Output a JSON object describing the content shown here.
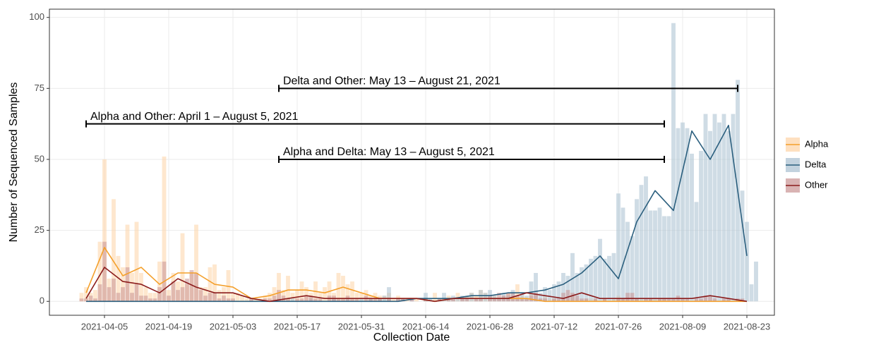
{
  "chart_data": {
    "type": "bar",
    "x_label": "Collection Date",
    "y_label": "Number of Sequenced Samples",
    "xlim": [
      "2021-03-24",
      "2021-08-29"
    ],
    "xticks": [
      "2021-04-05",
      "2021-04-19",
      "2021-05-03",
      "2021-05-17",
      "2021-05-31",
      "2021-06-14",
      "2021-06-28",
      "2021-07-12",
      "2021-07-26",
      "2021-08-09",
      "2021-08-23"
    ],
    "ylim": [
      -4.9,
      102.9
    ],
    "yticks": [
      0,
      25,
      50,
      75,
      100
    ],
    "grid": true,
    "legend": "right",
    "x": [
      "2021-03-31",
      "2021-04-01",
      "2021-04-02",
      "2021-04-03",
      "2021-04-04",
      "2021-04-05",
      "2021-04-06",
      "2021-04-07",
      "2021-04-08",
      "2021-04-09",
      "2021-04-10",
      "2021-04-11",
      "2021-04-12",
      "2021-04-13",
      "2021-04-14",
      "2021-04-15",
      "2021-04-16",
      "2021-04-17",
      "2021-04-18",
      "2021-04-19",
      "2021-04-20",
      "2021-04-21",
      "2021-04-22",
      "2021-04-23",
      "2021-04-24",
      "2021-04-25",
      "2021-04-26",
      "2021-04-27",
      "2021-04-28",
      "2021-04-29",
      "2021-04-30",
      "2021-05-01",
      "2021-05-02",
      "2021-05-03",
      "2021-05-04",
      "2021-05-05",
      "2021-05-06",
      "2021-05-07",
      "2021-05-08",
      "2021-05-09",
      "2021-05-10",
      "2021-05-11",
      "2021-05-12",
      "2021-05-13",
      "2021-05-14",
      "2021-05-15",
      "2021-05-16",
      "2021-05-17",
      "2021-05-18",
      "2021-05-19",
      "2021-05-20",
      "2021-05-21",
      "2021-05-22",
      "2021-05-23",
      "2021-05-24",
      "2021-05-25",
      "2021-05-26",
      "2021-05-27",
      "2021-05-28",
      "2021-05-29",
      "2021-05-30",
      "2021-05-31",
      "2021-06-01",
      "2021-06-02",
      "2021-06-03",
      "2021-06-04",
      "2021-06-05",
      "2021-06-06",
      "2021-06-07",
      "2021-06-08",
      "2021-06-09",
      "2021-06-10",
      "2021-06-11",
      "2021-06-12",
      "2021-06-13",
      "2021-06-14",
      "2021-06-15",
      "2021-06-16",
      "2021-06-17",
      "2021-06-18",
      "2021-06-19",
      "2021-06-20",
      "2021-06-21",
      "2021-06-22",
      "2021-06-23",
      "2021-06-24",
      "2021-06-25",
      "2021-06-26",
      "2021-06-27",
      "2021-06-28",
      "2021-06-29",
      "2021-06-30",
      "2021-07-01",
      "2021-07-02",
      "2021-07-03",
      "2021-07-04",
      "2021-07-05",
      "2021-07-06",
      "2021-07-07",
      "2021-07-08",
      "2021-07-09",
      "2021-07-10",
      "2021-07-11",
      "2021-07-12",
      "2021-07-13",
      "2021-07-14",
      "2021-07-15",
      "2021-07-16",
      "2021-07-17",
      "2021-07-18",
      "2021-07-19",
      "2021-07-20",
      "2021-07-21",
      "2021-07-22",
      "2021-07-23",
      "2021-07-24",
      "2021-07-25",
      "2021-07-26",
      "2021-07-27",
      "2021-07-28",
      "2021-07-29",
      "2021-07-30",
      "2021-07-31",
      "2021-08-01",
      "2021-08-02",
      "2021-08-03",
      "2021-08-04",
      "2021-08-05",
      "2021-08-06",
      "2021-08-07",
      "2021-08-08",
      "2021-08-09",
      "2021-08-10",
      "2021-08-11",
      "2021-08-12",
      "2021-08-13",
      "2021-08-14",
      "2021-08-15",
      "2021-08-16",
      "2021-08-17",
      "2021-08-18",
      "2021-08-19",
      "2021-08-20",
      "2021-08-21",
      "2021-08-22",
      "2021-08-23",
      "2021-08-24",
      "2021-08-25"
    ],
    "trend_x": [
      "2021-04-01",
      "2021-04-05",
      "2021-04-09",
      "2021-04-13",
      "2021-04-17",
      "2021-04-21",
      "2021-04-25",
      "2021-04-29",
      "2021-05-03",
      "2021-05-07",
      "2021-05-11",
      "2021-05-15",
      "2021-05-19",
      "2021-05-23",
      "2021-05-27",
      "2021-05-31",
      "2021-06-04",
      "2021-06-08",
      "2021-06-12",
      "2021-06-16",
      "2021-06-20",
      "2021-06-24",
      "2021-06-28",
      "2021-07-02",
      "2021-07-06",
      "2021-07-10",
      "2021-07-14",
      "2021-07-18",
      "2021-07-22",
      "2021-07-26",
      "2021-07-30",
      "2021-08-03",
      "2021-08-07",
      "2021-08-11",
      "2021-08-15",
      "2021-08-19",
      "2021-08-23"
    ],
    "series": [
      {
        "name": "Alpha",
        "color": "#f4a02c",
        "bar_color": "#fdd3a5",
        "values": [
          3,
          5,
          3,
          4,
          21,
          50,
          8,
          36,
          16,
          12,
          27,
          10,
          28,
          10,
          5,
          3,
          3,
          14,
          51,
          4,
          10,
          7,
          24,
          6,
          10,
          27,
          5,
          5,
          12,
          13,
          4,
          5,
          11,
          3,
          3,
          2,
          1,
          1,
          1,
          1,
          2,
          3,
          5,
          10,
          4,
          9,
          3,
          4,
          7,
          5,
          3,
          7,
          3,
          5,
          7,
          3,
          10,
          9,
          6,
          7,
          3,
          3,
          4,
          2,
          3,
          2,
          2,
          3,
          1,
          2,
          1,
          1,
          0,
          1,
          0,
          1,
          0,
          3,
          1,
          1,
          2,
          1,
          3,
          1,
          2,
          3,
          2,
          4,
          3,
          1,
          2,
          1,
          2,
          3,
          2,
          6,
          2,
          1,
          3,
          2,
          1,
          2,
          1,
          1,
          0,
          1,
          1,
          2,
          1,
          0,
          1,
          1,
          1,
          0,
          1,
          0,
          1,
          2,
          1,
          1,
          0,
          1,
          1,
          0,
          1,
          1,
          1,
          1,
          0,
          0,
          0,
          0,
          0,
          0,
          0,
          0,
          0,
          0,
          0,
          0,
          0,
          0,
          0,
          0,
          0,
          0,
          0,
          0
        ],
        "trend": [
          3,
          19,
          9,
          12,
          6,
          10,
          10,
          6,
          5,
          1,
          2,
          4,
          4,
          3,
          5,
          3,
          1,
          1,
          1,
          0,
          1,
          1,
          1,
          1,
          1,
          0,
          0,
          0,
          0,
          0,
          0,
          0,
          0,
          0,
          0,
          0,
          0
        ]
      },
      {
        "name": "Delta",
        "color": "#2b5f7e",
        "bar_color": "#a8bfd0",
        "values": [
          0,
          0,
          0,
          0,
          0,
          0,
          0,
          0,
          0,
          0,
          0,
          0,
          0,
          0,
          0,
          0,
          0,
          0,
          0,
          0,
          0,
          0,
          0,
          0,
          0,
          0,
          0,
          0,
          0,
          0,
          0,
          0,
          0,
          0,
          0,
          0,
          0,
          0,
          0,
          0,
          0,
          0,
          0,
          1,
          0,
          0,
          1,
          0,
          0,
          0,
          1,
          0,
          0,
          0,
          0,
          1,
          0,
          0,
          1,
          0,
          0,
          1,
          0,
          1,
          0,
          1,
          2,
          5,
          0,
          1,
          1,
          0,
          1,
          0,
          0,
          3,
          1,
          0,
          1,
          3,
          1,
          2,
          1,
          2,
          2,
          3,
          1,
          4,
          3,
          4,
          2,
          1,
          3,
          2,
          4,
          1,
          3,
          2,
          7,
          10,
          3,
          5,
          4,
          6,
          7,
          10,
          9,
          17,
          10,
          12,
          13,
          15,
          16,
          22,
          15,
          16,
          17,
          38,
          33,
          28,
          23,
          36,
          41,
          44,
          32,
          32,
          33,
          30,
          30,
          98,
          61,
          63,
          61,
          52,
          35,
          53,
          66,
          60,
          66,
          63,
          66,
          60,
          66,
          78,
          39,
          28,
          6,
          14
        ],
        "trend": [
          0,
          0,
          0,
          0,
          0,
          0,
          0,
          0,
          0,
          0,
          0,
          0,
          0,
          0,
          0,
          0,
          0,
          0,
          1,
          1,
          1,
          2,
          2,
          3,
          3,
          4,
          6,
          10,
          16,
          8,
          28,
          39,
          32,
          60,
          50,
          62,
          16
        ]
      },
      {
        "name": "Other",
        "color": "#8b1c1c",
        "bar_color": "#c99393",
        "values": [
          1,
          1,
          2,
          1,
          6,
          21,
          5,
          8,
          3,
          5,
          12,
          3,
          6,
          2,
          2,
          1,
          1,
          5,
          14,
          2,
          7,
          4,
          5,
          8,
          11,
          10,
          4,
          2,
          3,
          3,
          1,
          2,
          1,
          1,
          0,
          0,
          0,
          1,
          0,
          0,
          1,
          1,
          2,
          4,
          2,
          1,
          0,
          1,
          1,
          2,
          2,
          1,
          1,
          0,
          2,
          2,
          1,
          1,
          2,
          1,
          1,
          0,
          2,
          1,
          1,
          1,
          0,
          1,
          0,
          1,
          1,
          0,
          1,
          0,
          0,
          1,
          0,
          0,
          1,
          0,
          1,
          1,
          0,
          1,
          1,
          0,
          1,
          1,
          0,
          2,
          1,
          3,
          2,
          3,
          3,
          2,
          1,
          1,
          2,
          3,
          1,
          1,
          0,
          1,
          1,
          3,
          4,
          3,
          2,
          1,
          1,
          0,
          1,
          0,
          1,
          0,
          0,
          1,
          1,
          3,
          3,
          1,
          0,
          1,
          1,
          0,
          1,
          1,
          1,
          1,
          2,
          1,
          1,
          0,
          1,
          1,
          2,
          2,
          1,
          0,
          1,
          1,
          0,
          1,
          1,
          0,
          0,
          0
        ],
        "trend": [
          1,
          12,
          7,
          6,
          3,
          8,
          5,
          3,
          3,
          1,
          0,
          1,
          2,
          1,
          1,
          1,
          1,
          1,
          1,
          0,
          1,
          1,
          1,
          1,
          3,
          2,
          1,
          3,
          1,
          1,
          1,
          1,
          1,
          1,
          2,
          1,
          0
        ]
      }
    ],
    "annotations": [
      {
        "text": "Delta and Other: May 13 – August 21, 2021",
        "start": "2021-05-13",
        "end": "2021-08-21",
        "y": 75
      },
      {
        "text": "Alpha and Other: April 1 – August 5, 2021",
        "start": "2021-04-01",
        "end": "2021-08-05",
        "y": 62.5
      },
      {
        "text": "Alpha and Delta: May 13 – August 5, 2021",
        "start": "2021-05-13",
        "end": "2021-08-05",
        "y": 50
      }
    ]
  }
}
